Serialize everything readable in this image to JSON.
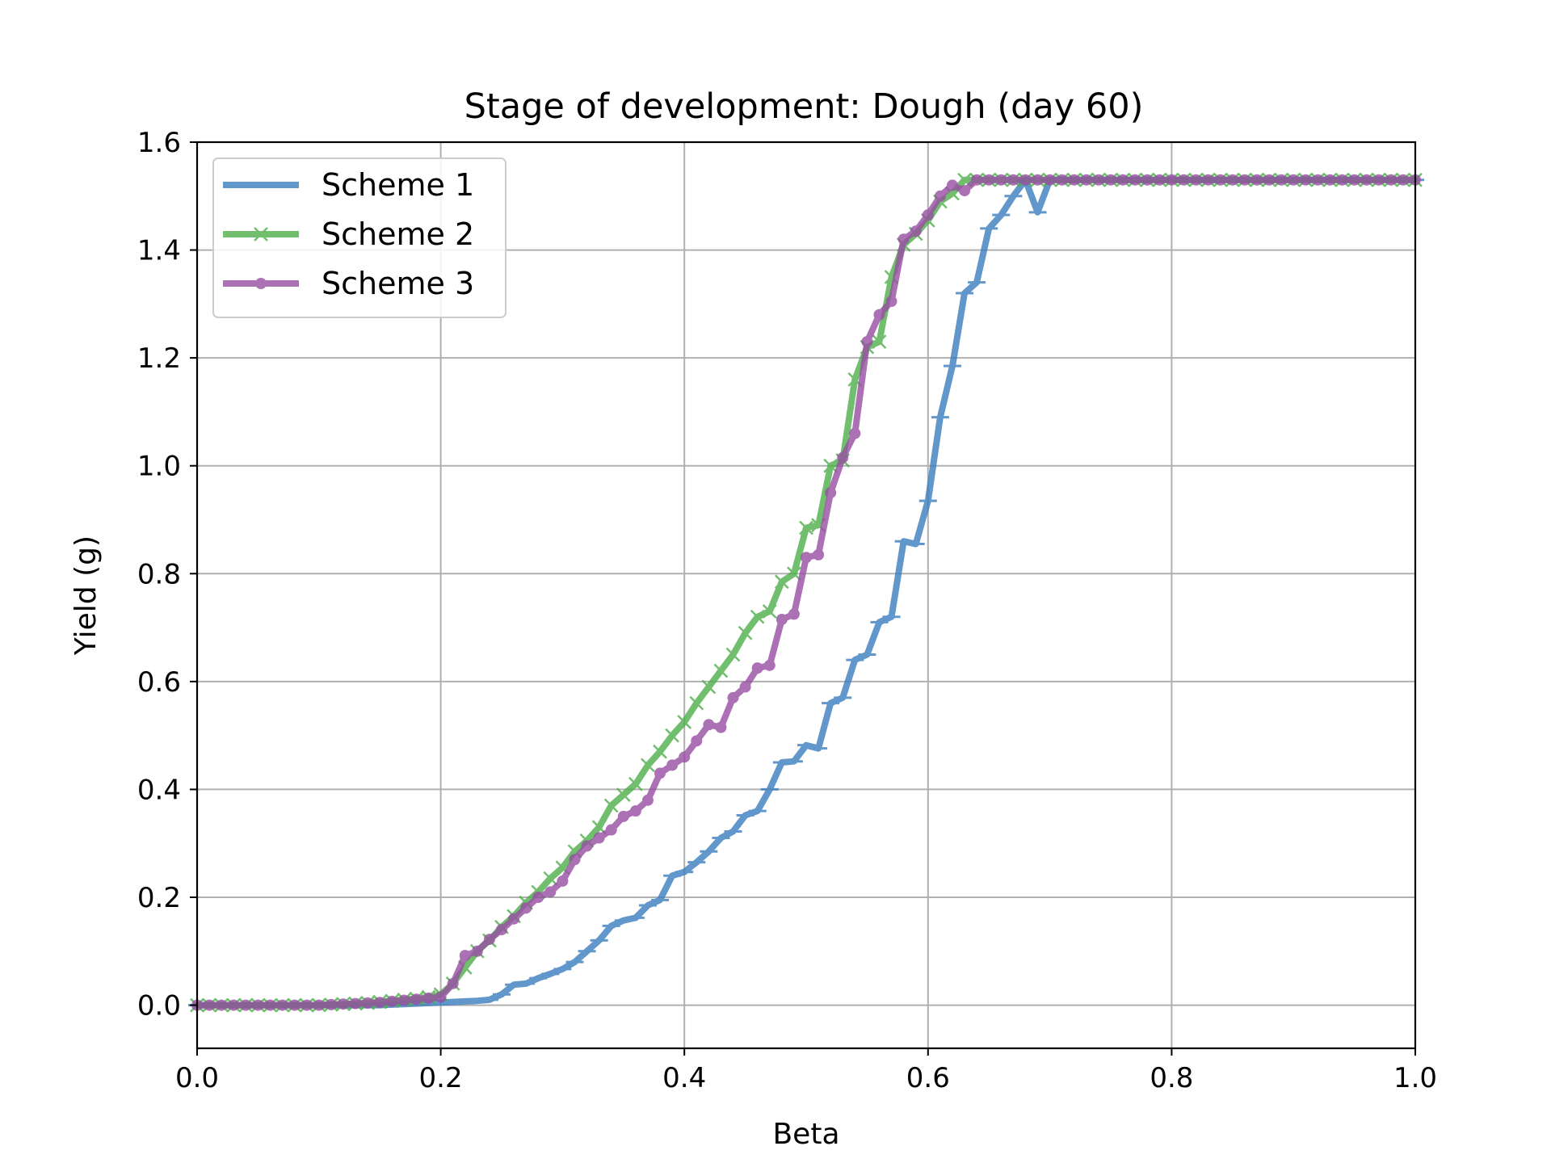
{
  "chart_data": {
    "type": "line",
    "title": "Stage of development: Dough (day 60)",
    "xlabel": "Beta",
    "ylabel": "Yield (g)",
    "xlim": [
      0.0,
      1.0
    ],
    "ylim": [
      -0.08,
      1.6
    ],
    "xticks": [
      "0.0",
      "0.2",
      "0.4",
      "0.6",
      "0.8",
      "1.0"
    ],
    "yticks": [
      "0.0",
      "0.2",
      "0.4",
      "0.6",
      "0.8",
      "1.0",
      "1.2",
      "1.4",
      "1.6"
    ],
    "grid": true,
    "legend_position": "upper-left",
    "x": [
      0.0,
      0.01,
      0.02,
      0.03,
      0.04,
      0.05,
      0.06,
      0.07,
      0.08,
      0.09,
      0.1,
      0.11,
      0.12,
      0.13,
      0.14,
      0.15,
      0.16,
      0.17,
      0.18,
      0.19,
      0.2,
      0.21,
      0.22,
      0.23,
      0.24,
      0.25,
      0.26,
      0.27,
      0.28,
      0.29,
      0.3,
      0.31,
      0.32,
      0.33,
      0.34,
      0.35,
      0.36,
      0.37,
      0.38,
      0.39,
      0.4,
      0.41,
      0.42,
      0.43,
      0.44,
      0.45,
      0.46,
      0.47,
      0.48,
      0.49,
      0.5,
      0.51,
      0.52,
      0.53,
      0.54,
      0.55,
      0.56,
      0.57,
      0.58,
      0.59,
      0.6,
      0.61,
      0.62,
      0.63,
      0.64,
      0.65,
      0.66,
      0.67,
      0.68,
      0.69,
      0.7,
      0.71,
      0.72,
      0.73,
      0.74,
      0.75,
      0.76,
      0.77,
      0.78,
      0.79,
      0.8,
      0.81,
      0.82,
      0.83,
      0.84,
      0.85,
      0.86,
      0.87,
      0.88,
      0.89,
      0.9,
      0.91,
      0.92,
      0.93,
      0.94,
      0.95,
      0.96,
      0.97,
      0.98,
      0.99,
      1.0
    ],
    "series": [
      {
        "name": "Scheme 1",
        "color": "#3a7ebf",
        "marker": "hline",
        "values": [
          0.0,
          0.0,
          0.0,
          0.0,
          0.0,
          0.0,
          0.0,
          0.0,
          0.0,
          0.0,
          0.0,
          0.0,
          0.0,
          0.0,
          0.0,
          0.0,
          0.001,
          0.002,
          0.003,
          0.004,
          0.005,
          0.006,
          0.007,
          0.008,
          0.01,
          0.02,
          0.038,
          0.04,
          0.05,
          0.058,
          0.067,
          0.08,
          0.1,
          0.12,
          0.147,
          0.157,
          0.162,
          0.185,
          0.195,
          0.24,
          0.247,
          0.265,
          0.285,
          0.31,
          0.322,
          0.352,
          0.36,
          0.4,
          0.45,
          0.452,
          0.482,
          0.476,
          0.56,
          0.57,
          0.64,
          0.65,
          0.71,
          0.72,
          0.86,
          0.855,
          0.935,
          1.09,
          1.185,
          1.32,
          1.34,
          1.44,
          1.465,
          1.5,
          1.53,
          1.47,
          1.53,
          1.53,
          1.53,
          1.53,
          1.53,
          1.53,
          1.53,
          1.53,
          1.53,
          1.53,
          1.53,
          1.53,
          1.53,
          1.53,
          1.53,
          1.53,
          1.53,
          1.53,
          1.53,
          1.53,
          1.53,
          1.53,
          1.53,
          1.53,
          1.53,
          1.53,
          1.53,
          1.53,
          1.53,
          1.53,
          1.53
        ]
      },
      {
        "name": "Scheme 2",
        "color": "#4daf4a",
        "marker": "x",
        "values": [
          0.0,
          0.0,
          0.0,
          0.0,
          0.0,
          0.0,
          0.0,
          0.0,
          0.0,
          0.0,
          0.0,
          0.001,
          0.002,
          0.003,
          0.004,
          0.006,
          0.008,
          0.01,
          0.012,
          0.015,
          0.02,
          0.04,
          0.07,
          0.1,
          0.12,
          0.145,
          0.165,
          0.19,
          0.21,
          0.235,
          0.255,
          0.285,
          0.305,
          0.33,
          0.37,
          0.39,
          0.41,
          0.445,
          0.47,
          0.5,
          0.525,
          0.56,
          0.59,
          0.62,
          0.65,
          0.69,
          0.72,
          0.73,
          0.785,
          0.8,
          0.885,
          0.89,
          1.0,
          1.01,
          1.16,
          1.22,
          1.23,
          1.35,
          1.41,
          1.43,
          1.455,
          1.49,
          1.505,
          1.53,
          1.53,
          1.53,
          1.53,
          1.53,
          1.53,
          1.53,
          1.53,
          1.53,
          1.53,
          1.53,
          1.53,
          1.53,
          1.53,
          1.53,
          1.53,
          1.53,
          1.53,
          1.53,
          1.53,
          1.53,
          1.53,
          1.53,
          1.53,
          1.53,
          1.53,
          1.53,
          1.53,
          1.53,
          1.53,
          1.53,
          1.53,
          1.53,
          1.53,
          1.53,
          1.53,
          1.53,
          1.53
        ]
      },
      {
        "name": "Scheme 3",
        "color": "#984ea3",
        "marker": "dot",
        "values": [
          0.0,
          0.0,
          0.0,
          0.0,
          0.0,
          0.0,
          0.0,
          0.0,
          0.0,
          0.0,
          0.0,
          0.001,
          0.002,
          0.003,
          0.004,
          0.005,
          0.007,
          0.009,
          0.011,
          0.013,
          0.015,
          0.04,
          0.092,
          0.1,
          0.122,
          0.14,
          0.16,
          0.18,
          0.2,
          0.21,
          0.23,
          0.27,
          0.295,
          0.31,
          0.325,
          0.35,
          0.36,
          0.38,
          0.43,
          0.445,
          0.46,
          0.49,
          0.52,
          0.515,
          0.57,
          0.59,
          0.625,
          0.63,
          0.715,
          0.725,
          0.83,
          0.835,
          0.95,
          1.015,
          1.06,
          1.23,
          1.28,
          1.305,
          1.42,
          1.435,
          1.465,
          1.5,
          1.52,
          1.51,
          1.53,
          1.53,
          1.53,
          1.53,
          1.53,
          1.53,
          1.53,
          1.53,
          1.53,
          1.53,
          1.53,
          1.53,
          1.53,
          1.53,
          1.53,
          1.53,
          1.53,
          1.53,
          1.53,
          1.53,
          1.53,
          1.53,
          1.53,
          1.53,
          1.53,
          1.53,
          1.53,
          1.53,
          1.53,
          1.53,
          1.53,
          1.53,
          1.53,
          1.53,
          1.53,
          1.53,
          1.53
        ]
      }
    ]
  }
}
